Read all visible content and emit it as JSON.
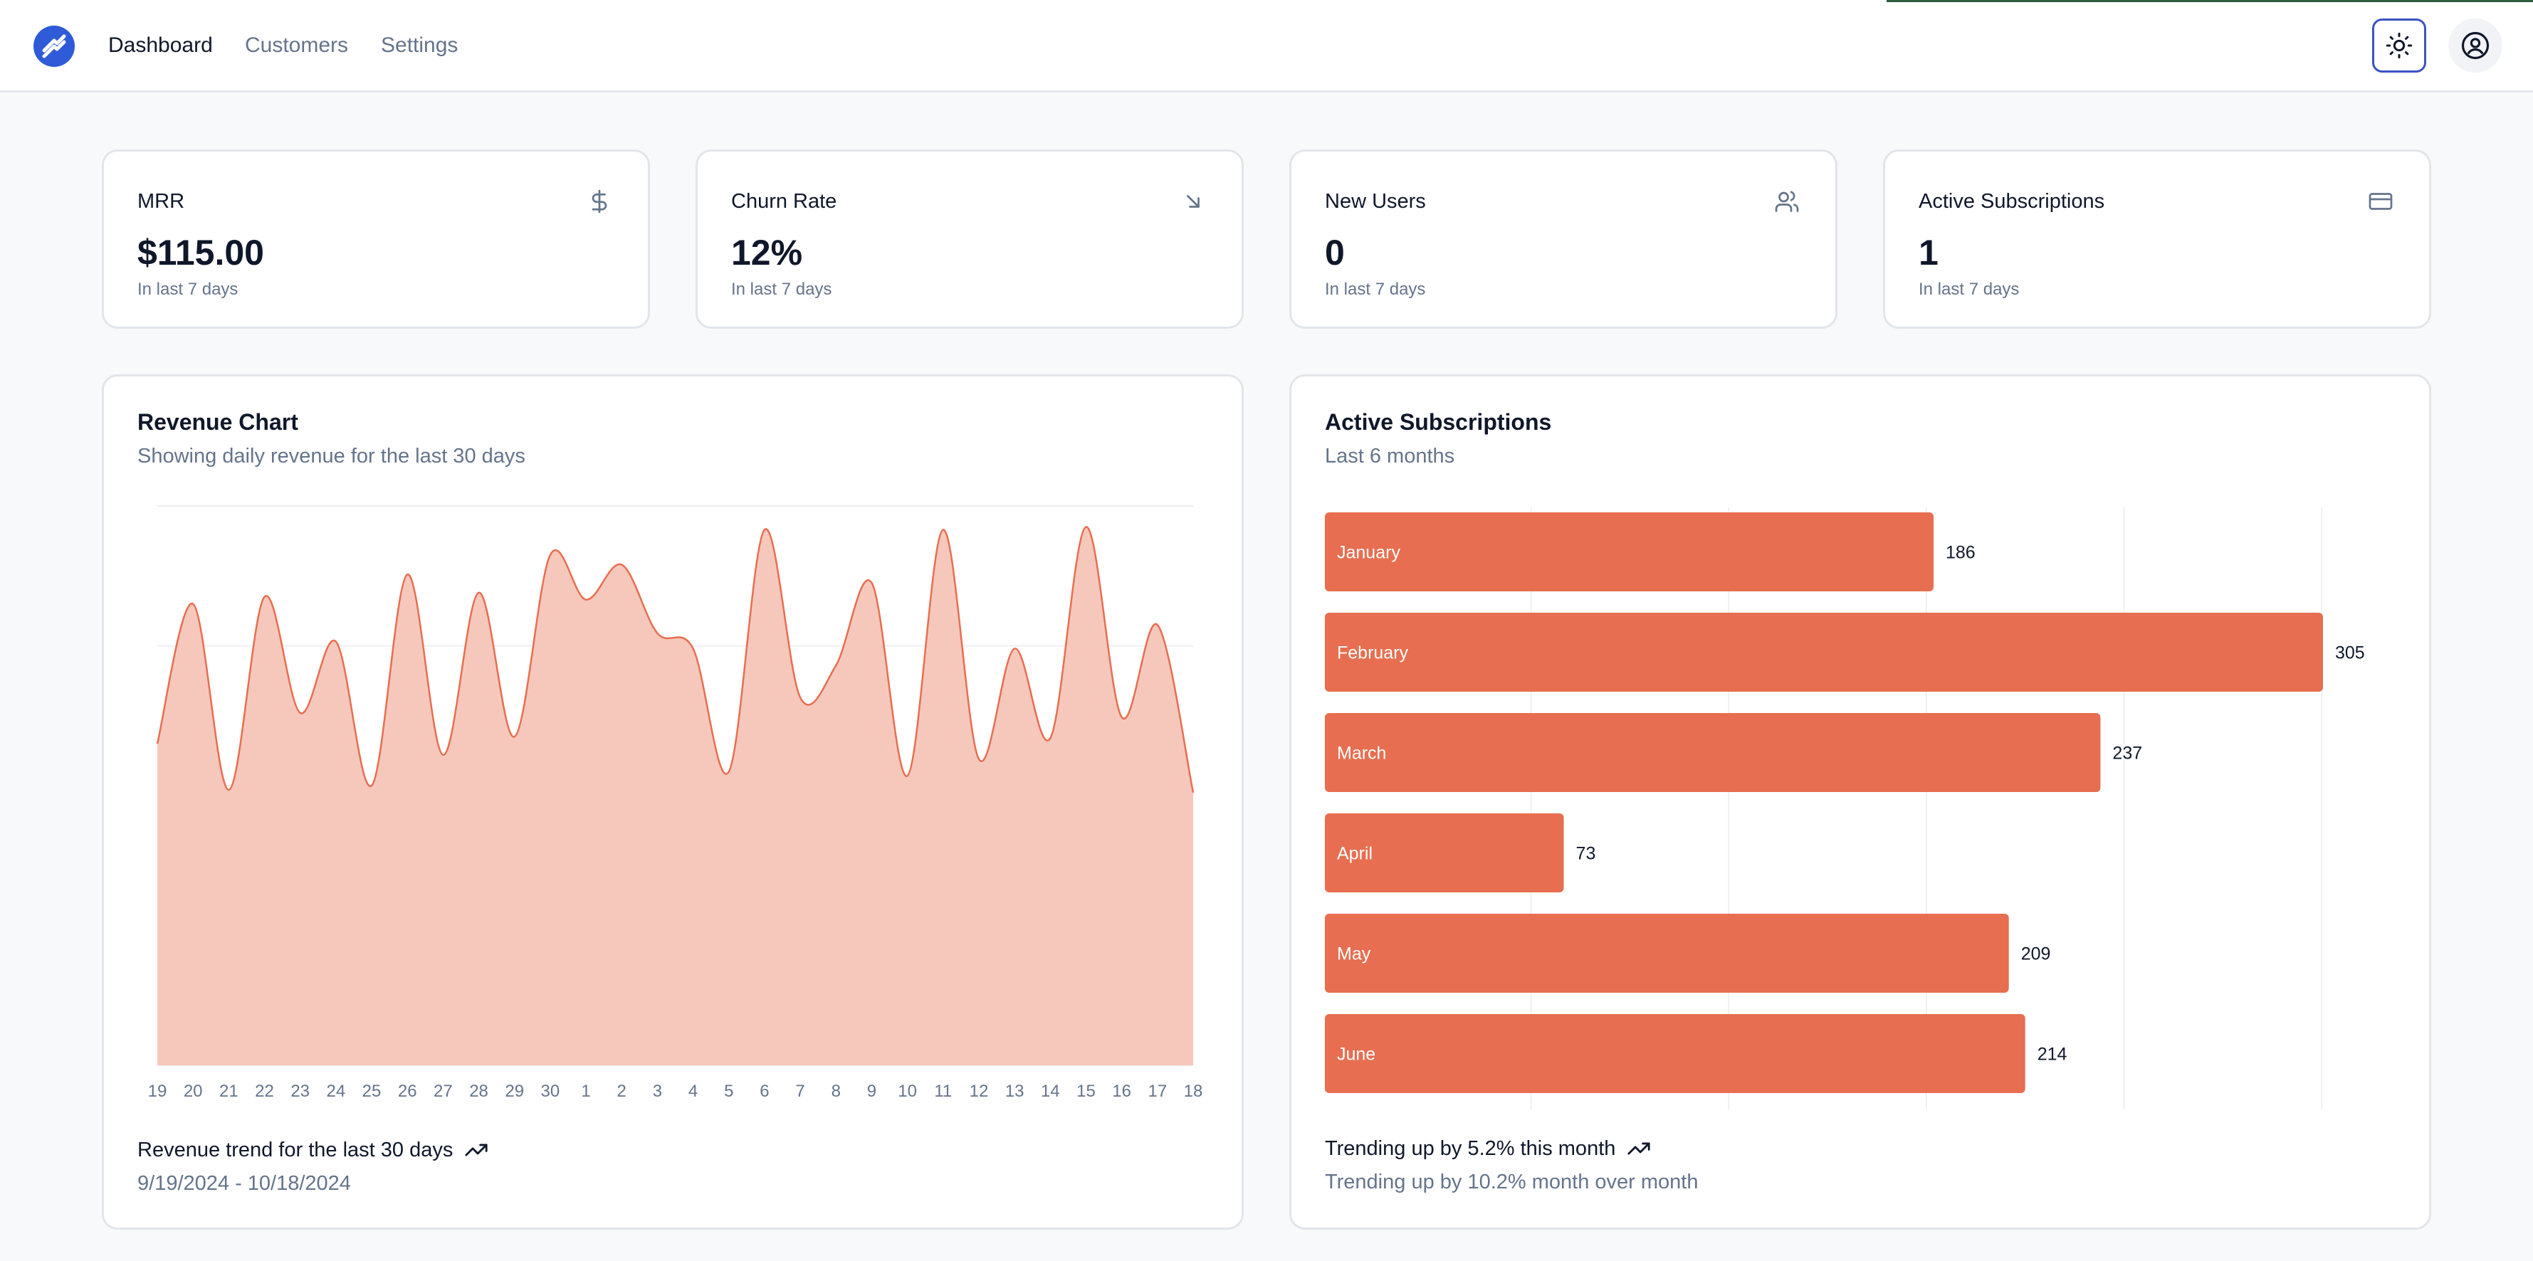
{
  "nav": {
    "links": [
      "Dashboard",
      "Customers",
      "Settings"
    ]
  },
  "icons": {
    "logo": "logo-icon",
    "theme": "sun-icon",
    "user": "user-circle-icon",
    "trend": "trending-up-icon"
  },
  "stats": [
    {
      "title": "MRR",
      "value": "$115.00",
      "sub": "In last 7 days",
      "icon": "dollar-icon"
    },
    {
      "title": "Churn Rate",
      "value": "12%",
      "sub": "In last 7 days",
      "icon": "arrow-down-right-icon"
    },
    {
      "title": "New Users",
      "value": "0",
      "sub": "In last 7 days",
      "icon": "users-icon"
    },
    {
      "title": "Active Subscriptions",
      "value": "1",
      "sub": "In last 7 days",
      "icon": "credit-card-icon"
    }
  ],
  "revenue": {
    "title": "Revenue Chart",
    "desc": "Showing daily revenue for the last 30 days",
    "footer": "Revenue trend for the last 30 days",
    "range": "9/19/2024 - 10/18/2024"
  },
  "subscriptions": {
    "title": "Active Subscriptions",
    "desc": "Last 6 months",
    "footer": "Trending up by 5.2% this month",
    "footer2": "Trending up by 10.2% month over month"
  },
  "colors": {
    "accent": "#e76e50",
    "area_fill": "#f5c5b8",
    "brand": "#2f5bd8"
  },
  "chart_data": [
    {
      "type": "area",
      "x": [
        "19",
        "20",
        "21",
        "22",
        "23",
        "24",
        "25",
        "26",
        "27",
        "28",
        "29",
        "30",
        "1",
        "2",
        "3",
        "4",
        "5",
        "6",
        "7",
        "8",
        "9",
        "10",
        "11",
        "12",
        "13",
        "14",
        "15",
        "16",
        "17",
        "18"
      ],
      "values": [
        230,
        330,
        197,
        335,
        252,
        303,
        200,
        351,
        222,
        338,
        235,
        365,
        333,
        358,
        309,
        298,
        210,
        383,
        263,
        286,
        345,
        207,
        383,
        219,
        298,
        234,
        385,
        249,
        315,
        195
      ],
      "ylim": [
        0,
        400
      ],
      "grid": true
    },
    {
      "type": "bar",
      "orientation": "horizontal",
      "categories": [
        "January",
        "February",
        "March",
        "April",
        "May",
        "June"
      ],
      "values": [
        186,
        305,
        237,
        73,
        209,
        214
      ],
      "grid": true
    }
  ]
}
